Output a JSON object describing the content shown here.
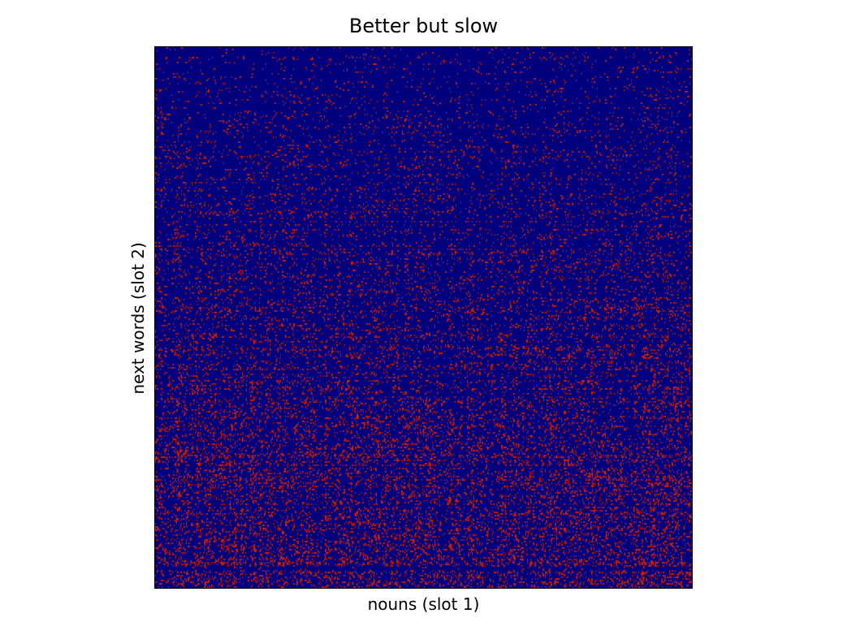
{
  "chart_data": {
    "type": "heatmap",
    "title": "Better but slow",
    "xlabel": "nouns (slot 1)",
    "ylabel": "next words (slot 2)",
    "colormap": {
      "low": "#00007f",
      "high": "#d01e00"
    },
    "values": "binary co-occurrence matrix; individual cell values not legible at this resolution",
    "grid": false,
    "legend": "none",
    "xticks": [],
    "yticks": []
  }
}
